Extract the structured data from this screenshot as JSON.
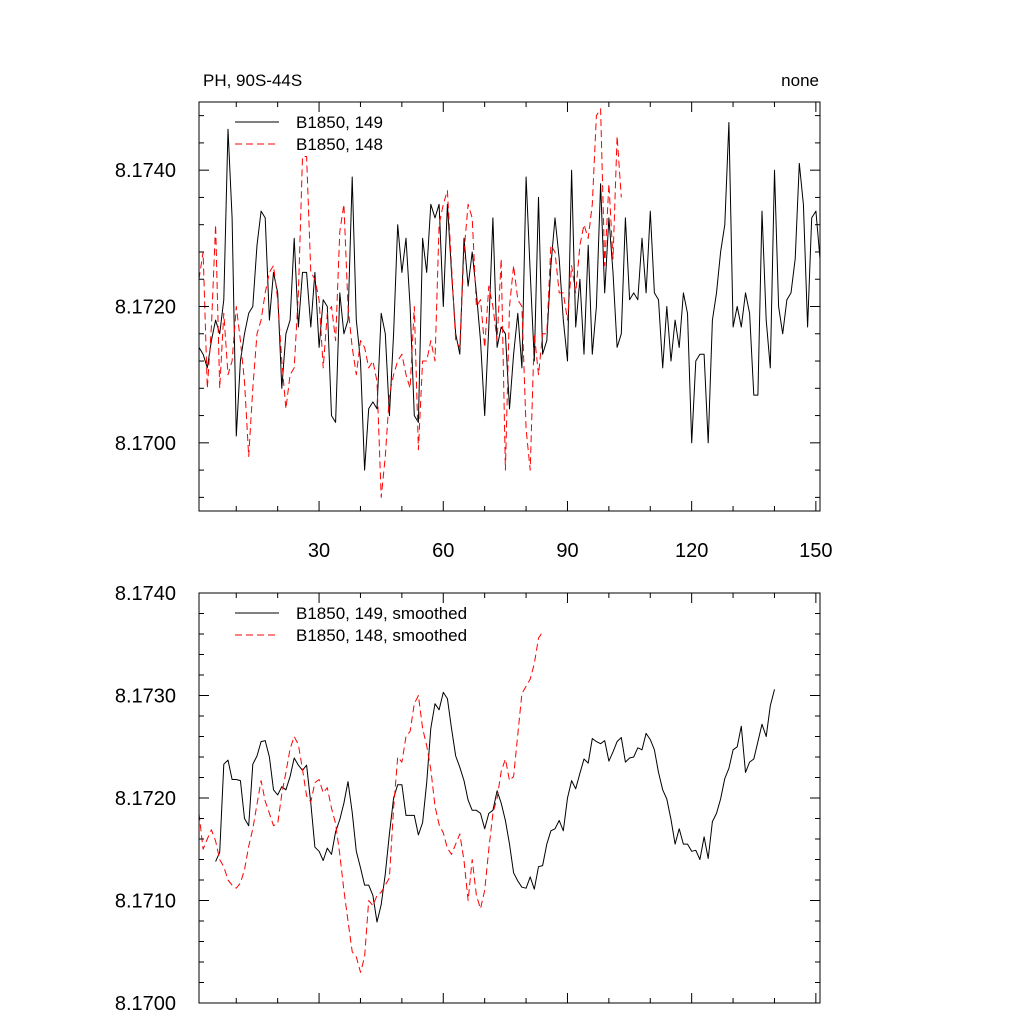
{
  "header": {
    "left_title": "PH, 90S-44S",
    "right_title": "none"
  },
  "chart_data": [
    {
      "type": "line",
      "title": "PH, 90S-44S",
      "right_string": "none",
      "xlabel": "",
      "ylabel": "",
      "xlim": [
        1,
        151
      ],
      "ylim": [
        8.169,
        8.175
      ],
      "x_ticks": [
        30,
        60,
        90,
        120,
        150
      ],
      "x_tick_labels": [
        "30",
        "60",
        "90",
        "120",
        "150"
      ],
      "y_ticks": [
        8.17,
        8.172,
        8.174
      ],
      "y_tick_labels": [
        "8.1700",
        "8.1720",
        "8.1740"
      ],
      "grid": false,
      "legend_position": "top-left",
      "series": [
        {
          "name": "B1850, 149",
          "color": "#000000",
          "dash": "solid",
          "x_start": 1,
          "values": [
            8.1714,
            8.1713,
            8.1711,
            8.1715,
            8.1718,
            8.1716,
            8.1721,
            8.1746,
            8.1733,
            8.1701,
            8.1712,
            8.1716,
            8.1719,
            8.172,
            8.1729,
            8.1734,
            8.1733,
            8.1718,
            8.1725,
            8.1722,
            8.1708,
            8.1716,
            8.1718,
            8.173,
            8.1717,
            8.1725,
            8.1725,
            8.1717,
            8.1725,
            8.1714,
            8.1721,
            8.172,
            8.1704,
            8.1703,
            8.1722,
            8.1716,
            8.1718,
            8.1739,
            8.1718,
            8.1712,
            8.1696,
            8.1705,
            8.1706,
            8.1705,
            8.1719,
            8.1716,
            8.1704,
            8.1716,
            8.1732,
            8.1725,
            8.173,
            8.172,
            8.1704,
            8.1703,
            8.173,
            8.1725,
            8.1735,
            8.1733,
            8.1735,
            8.172,
            8.1735,
            8.1725,
            8.1716,
            8.1713,
            8.173,
            8.1723,
            8.1728,
            8.1722,
            8.1715,
            8.1704,
            8.1717,
            8.1733,
            8.1714,
            8.1717,
            8.1716,
            8.1705,
            8.1713,
            8.1719,
            8.1711,
            8.1739,
            8.1725,
            8.1712,
            8.1736,
            8.1713,
            8.1715,
            8.1726,
            8.1733,
            8.1727,
            8.1718,
            8.1712,
            8.174,
            8.1717,
            8.1724,
            8.1713,
            8.1729,
            8.1713,
            8.172,
            8.1738,
            8.1722,
            8.1733,
            8.1725,
            8.1714,
            8.1716,
            8.1733,
            8.1721,
            8.1722,
            8.1721,
            8.173,
            8.1722,
            8.1734,
            8.1722,
            8.1721,
            8.1711,
            8.172,
            8.1712,
            8.1718,
            8.1714,
            8.1722,
            8.1719,
            8.17,
            8.1712,
            8.1713,
            8.1713,
            8.17,
            8.1718,
            8.1722,
            8.1728,
            8.1732,
            8.1747,
            8.1717,
            8.172,
            8.1717,
            8.1722,
            8.1719,
            8.1707,
            8.1707,
            8.1734,
            8.1718,
            8.1711,
            8.174,
            8.172,
            8.1716,
            8.1721,
            8.1722,
            8.1727,
            8.1741,
            8.1735,
            8.1717,
            8.1733,
            8.1734,
            8.1727
          ]
        },
        {
          "name": "B1850, 148",
          "color": "#ff0000",
          "dash": "dashed",
          "x_start": 1,
          "values": [
            8.1724,
            8.1728,
            8.1708,
            8.1717,
            8.1732,
            8.1708,
            8.1719,
            8.171,
            8.1712,
            8.172,
            8.1715,
            8.1709,
            8.1698,
            8.1708,
            8.1716,
            8.1718,
            8.1722,
            8.1725,
            8.1726,
            8.1721,
            8.1712,
            8.1705,
            8.171,
            8.1711,
            8.1722,
            8.1742,
            8.1742,
            8.1725,
            8.1724,
            8.1721,
            8.1711,
            8.1719,
            8.172,
            8.1715,
            8.1731,
            8.1735,
            8.172,
            8.1714,
            8.171,
            8.1715,
            8.1714,
            8.1711,
            8.1712,
            8.1709,
            8.1692,
            8.1698,
            8.1707,
            8.171,
            8.1712,
            8.1713,
            8.171,
            8.1708,
            8.172,
            8.1699,
            8.1712,
            8.1712,
            8.1715,
            8.1712,
            8.1732,
            8.1735,
            8.1737,
            8.1726,
            8.1715,
            8.1714,
            8.1728,
            8.1735,
            8.1733,
            8.172,
            8.1721,
            8.1714,
            8.1723,
            8.172,
            8.1715,
            8.1727,
            8.1696,
            8.172,
            8.1726,
            8.1721,
            8.172,
            8.1702,
            8.1696,
            8.1716,
            8.171,
            8.1716,
            8.1716,
            8.1729,
            8.1728,
            8.1722,
            8.1722,
            8.1718,
            8.1726,
            8.1722,
            8.1729,
            8.1732,
            8.173,
            8.1735,
            8.1748,
            8.1749,
            8.1726,
            8.1738,
            8.1727,
            8.1745,
            8.1736
          ]
        }
      ]
    },
    {
      "type": "line",
      "title": "",
      "xlabel": "",
      "ylabel": "",
      "xlim": [
        1,
        151
      ],
      "ylim": [
        8.17,
        8.174
      ],
      "x_ticks": [
        30,
        60,
        90,
        120,
        150
      ],
      "x_tick_labels": [],
      "y_ticks": [
        8.17,
        8.171,
        8.172,
        8.173,
        8.174
      ],
      "y_tick_labels": [
        "8.1700",
        "8.1710",
        "8.1720",
        "8.1730",
        "8.1740"
      ],
      "grid": false,
      "legend_position": "top-left",
      "series": [
        {
          "name": "B1850, 149, smoothed",
          "color": "#000000",
          "dash": "solid",
          "x_start": 5,
          "values": [
            8.17138,
            8.17147,
            8.17233,
            8.17237,
            8.17218,
            8.17218,
            8.17217,
            8.1718,
            8.17173,
            8.17233,
            8.17241,
            8.17255,
            8.17256,
            8.1724,
            8.17208,
            8.17203,
            8.17211,
            8.17208,
            8.17221,
            8.17239,
            8.17232,
            8.17227,
            8.17232,
            8.17195,
            8.17152,
            8.17148,
            8.17139,
            8.17151,
            8.17145,
            8.17167,
            8.17179,
            8.17195,
            8.17216,
            8.17186,
            8.17148,
            8.17132,
            8.17115,
            8.17115,
            8.17105,
            8.17079,
            8.17096,
            8.17126,
            8.17165,
            8.172,
            8.17213,
            8.17213,
            8.17183,
            8.17183,
            8.17183,
            8.17164,
            8.17176,
            8.17215,
            8.17268,
            8.17292,
            8.17286,
            8.17303,
            8.17297,
            8.17268,
            8.17241,
            8.1723,
            8.17217,
            8.17198,
            8.17188,
            8.17188,
            8.17185,
            8.1717,
            8.17185,
            8.17188,
            8.17207,
            8.17195,
            8.17178,
            8.17155,
            8.17127,
            8.17119,
            8.17113,
            8.17112,
            8.17123,
            8.17111,
            8.17133,
            8.17134,
            8.17155,
            8.17168,
            8.1717,
            8.17178,
            8.17168,
            8.172,
            8.17217,
            8.17209,
            8.17224,
            8.17238,
            8.17234,
            8.17258,
            8.17255,
            8.17253,
            8.17256,
            8.17236,
            8.17245,
            8.17255,
            8.17259,
            8.17235,
            8.17239,
            8.1724,
            8.17249,
            8.17247,
            8.17263,
            8.17257,
            8.17247,
            8.17225,
            8.17208,
            8.17199,
            8.17179,
            8.17155,
            8.1717,
            8.17155,
            8.17155,
            8.17148,
            8.17149,
            8.1714,
            8.17162,
            8.17141,
            8.17177,
            8.17185,
            8.17199,
            8.17219,
            8.17229,
            8.17247,
            8.1725,
            8.1727,
            8.17225,
            8.17235,
            8.17238,
            8.17255,
            8.17272,
            8.1726,
            8.1729,
            8.17306
          ]
        },
        {
          "name": "B1850, 148, smoothed",
          "color": "#ff0000",
          "dash": "dashed",
          "x_start": 1,
          "values": [
            8.17185,
            8.1715,
            8.1716,
            8.17169,
            8.17158,
            8.1714,
            8.17133,
            8.1712,
            8.17115,
            8.17112,
            8.17117,
            8.1713,
            8.17153,
            8.1717,
            8.17194,
            8.17217,
            8.17197,
            8.17185,
            8.17173,
            8.17175,
            8.17204,
            8.17225,
            8.17248,
            8.1726,
            8.17252,
            8.17228,
            8.17202,
            8.17196,
            8.17215,
            8.17218,
            8.17205,
            8.1721,
            8.1719,
            8.17175,
            8.17145,
            8.1711,
            8.1708,
            8.1705,
            8.17045,
            8.1703,
            8.17045,
            8.171,
            8.17095,
            8.17105,
            8.17108,
            8.17115,
            8.17122,
            8.1719,
            8.1724,
            8.17235,
            8.1726,
            8.17265,
            8.17292,
            8.173,
            8.17268,
            8.17251,
            8.17228,
            8.17192,
            8.17174,
            8.17166,
            8.17151,
            8.17145,
            8.17155,
            8.17165,
            8.17139,
            8.171,
            8.1714,
            8.17105,
            8.17092,
            8.1711,
            8.1715,
            8.17185,
            8.172,
            8.17226,
            8.17238,
            8.17217,
            8.17221,
            8.17262,
            8.17302,
            8.17309,
            8.17316,
            8.17331,
            8.17356,
            8.17362
          ]
        }
      ]
    }
  ]
}
